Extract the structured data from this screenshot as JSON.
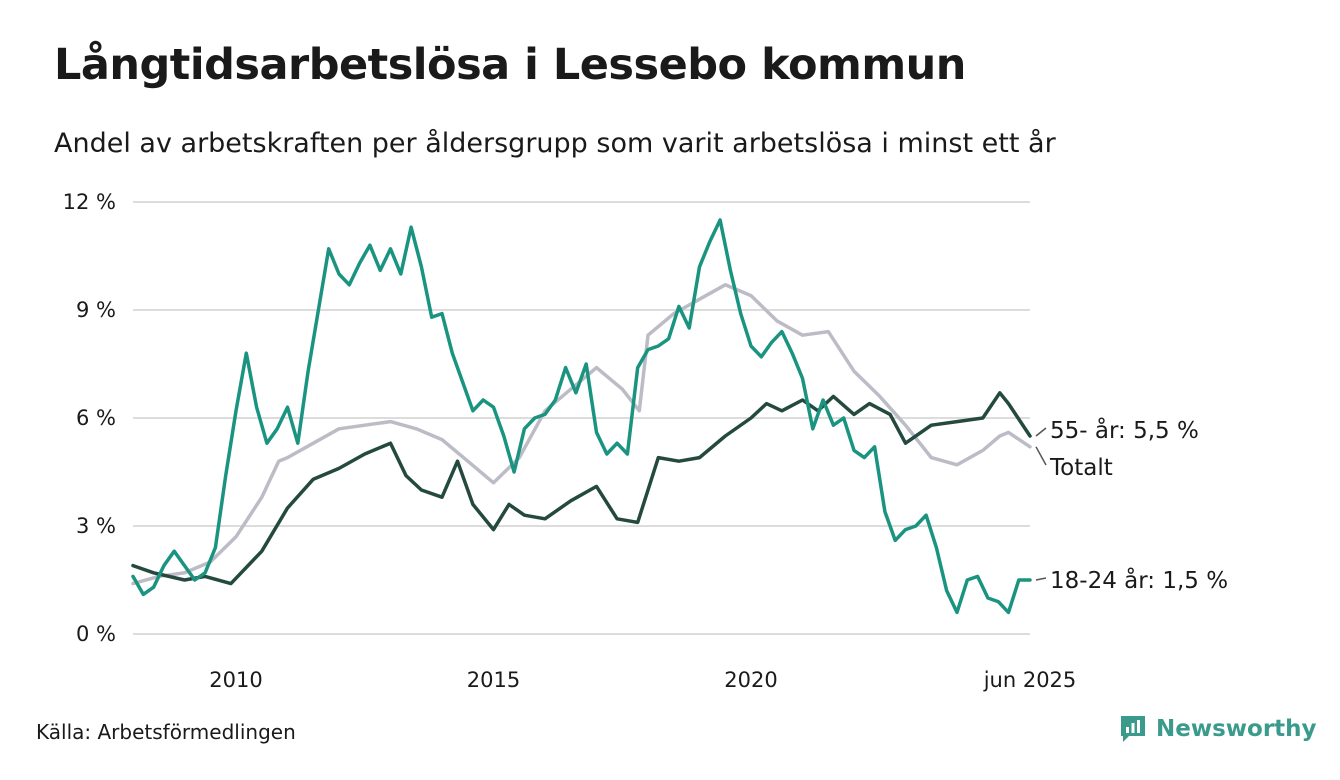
{
  "title": "Långtidsarbetslösa i Lessebo kommun",
  "subtitle": "Andel av arbetskraften per åldersgrupp som varit arbetslösa i minst ett år",
  "source": "Källa: Arbetsförmedlingen",
  "brand": "Newsworthy",
  "colors": {
    "youth": "#1a9480",
    "senior": "#24493f",
    "total": "#bcbcc6",
    "grid": "#dcdcdc",
    "brand": "#3a9a8c"
  },
  "chart_data": {
    "type": "line",
    "x_ticks": [
      {
        "x": 2010,
        "label": "2010"
      },
      {
        "x": 2015,
        "label": "2015"
      },
      {
        "x": 2020,
        "label": "2020"
      },
      {
        "x": 2025.417,
        "label": "jun 2025"
      }
    ],
    "xlim": [
      2008.0,
      2025.417
    ],
    "y_ticks": [
      {
        "y": 0,
        "label": "0 %"
      },
      {
        "y": 3,
        "label": "3 %"
      },
      {
        "y": 6,
        "label": "6 %"
      },
      {
        "y": 9,
        "label": "9 %"
      },
      {
        "y": 12,
        "label": "12 %"
      }
    ],
    "ylim": [
      0,
      12
    ],
    "grid": true,
    "series": [
      {
        "key": "total",
        "label": "Totalt",
        "x": [
          2008.0,
          2008.5,
          2009.0,
          2009.5,
          2010.0,
          2010.5,
          2010.83,
          2011.0,
          2011.5,
          2012.0,
          2012.5,
          2013.0,
          2013.5,
          2014.0,
          2014.5,
          2015.0,
          2015.5,
          2016.0,
          2016.5,
          2017.0,
          2017.5,
          2017.83,
          2018.0,
          2018.5,
          2019.0,
          2019.5,
          2020.0,
          2020.5,
          2021.0,
          2021.5,
          2022.0,
          2022.5,
          2023.0,
          2023.5,
          2024.0,
          2024.5,
          2024.83,
          2025.0,
          2025.417
        ],
        "values": [
          1.4,
          1.6,
          1.7,
          2.0,
          2.7,
          3.8,
          4.8,
          4.9,
          5.3,
          5.7,
          5.8,
          5.9,
          5.7,
          5.4,
          4.8,
          4.2,
          4.9,
          6.2,
          6.8,
          7.4,
          6.8,
          6.2,
          8.3,
          8.9,
          9.3,
          9.7,
          9.4,
          8.7,
          8.3,
          8.4,
          7.3,
          6.6,
          5.8,
          4.9,
          4.7,
          5.1,
          5.5,
          5.6,
          5.2
        ]
      },
      {
        "key": "senior",
        "label": "55- år: 5,5 %",
        "x": [
          2008.0,
          2008.4,
          2009.0,
          2009.4,
          2009.9,
          2010.5,
          2011.0,
          2011.5,
          2012.0,
          2012.5,
          2013.0,
          2013.3,
          2013.6,
          2014.0,
          2014.3,
          2014.6,
          2015.0,
          2015.3,
          2015.6,
          2016.0,
          2016.5,
          2017.0,
          2017.4,
          2017.8,
          2018.2,
          2018.6,
          2019.0,
          2019.5,
          2020.0,
          2020.3,
          2020.6,
          2021.0,
          2021.3,
          2021.6,
          2022.0,
          2022.3,
          2022.7,
          2023.0,
          2023.5,
          2024.0,
          2024.5,
          2024.83,
          2025.0,
          2025.417
        ],
        "values": [
          1.9,
          1.7,
          1.5,
          1.6,
          1.4,
          2.3,
          3.5,
          4.3,
          4.6,
          5.0,
          5.3,
          4.4,
          4.0,
          3.8,
          4.8,
          3.6,
          2.9,
          3.6,
          3.3,
          3.2,
          3.7,
          4.1,
          3.2,
          3.1,
          4.9,
          4.8,
          4.9,
          5.5,
          6.0,
          6.4,
          6.2,
          6.5,
          6.2,
          6.6,
          6.1,
          6.4,
          6.1,
          5.3,
          5.8,
          5.9,
          6.0,
          6.7,
          6.4,
          5.5
        ]
      },
      {
        "key": "youth",
        "label": "18-24 år: 1,5 %",
        "x": [
          2008.0,
          2008.2,
          2008.4,
          2008.6,
          2008.8,
          2009.0,
          2009.2,
          2009.4,
          2009.6,
          2009.8,
          2010.0,
          2010.2,
          2010.4,
          2010.6,
          2010.8,
          2011.0,
          2011.2,
          2011.4,
          2011.6,
          2011.8,
          2012.0,
          2012.2,
          2012.4,
          2012.6,
          2012.8,
          2013.0,
          2013.2,
          2013.4,
          2013.6,
          2013.8,
          2014.0,
          2014.2,
          2014.4,
          2014.6,
          2014.8,
          2015.0,
          2015.2,
          2015.4,
          2015.6,
          2015.8,
          2016.0,
          2016.2,
          2016.4,
          2016.6,
          2016.8,
          2017.0,
          2017.2,
          2017.4,
          2017.6,
          2017.8,
          2018.0,
          2018.2,
          2018.4,
          2018.6,
          2018.8,
          2019.0,
          2019.2,
          2019.4,
          2019.6,
          2019.8,
          2020.0,
          2020.2,
          2020.4,
          2020.6,
          2020.8,
          2021.0,
          2021.2,
          2021.4,
          2021.6,
          2021.8,
          2022.0,
          2022.2,
          2022.4,
          2022.6,
          2022.8,
          2023.0,
          2023.2,
          2023.4,
          2023.6,
          2023.8,
          2024.0,
          2024.2,
          2024.4,
          2024.6,
          2024.8,
          2025.0,
          2025.2,
          2025.417
        ],
        "values": [
          1.6,
          1.1,
          1.3,
          1.9,
          2.3,
          1.9,
          1.5,
          1.7,
          2.4,
          4.4,
          6.2,
          7.8,
          6.3,
          5.3,
          5.7,
          6.3,
          5.3,
          7.3,
          9.0,
          10.7,
          10.0,
          9.7,
          10.3,
          10.8,
          10.1,
          10.7,
          10.0,
          11.3,
          10.2,
          8.8,
          8.9,
          7.8,
          7.0,
          6.2,
          6.5,
          6.3,
          5.5,
          4.5,
          5.7,
          6.0,
          6.1,
          6.5,
          7.4,
          6.7,
          7.5,
          5.6,
          5.0,
          5.3,
          5.0,
          7.4,
          7.9,
          8.0,
          8.2,
          9.1,
          8.5,
          10.2,
          10.9,
          11.5,
          10.1,
          8.9,
          8.0,
          7.7,
          8.1,
          8.4,
          7.8,
          7.1,
          5.7,
          6.5,
          5.8,
          6.0,
          5.1,
          4.9,
          5.2,
          3.4,
          2.6,
          2.9,
          3.0,
          3.3,
          2.4,
          1.2,
          0.6,
          1.5,
          1.6,
          1.0,
          0.9,
          0.6,
          1.5,
          1.5
        ]
      }
    ]
  }
}
